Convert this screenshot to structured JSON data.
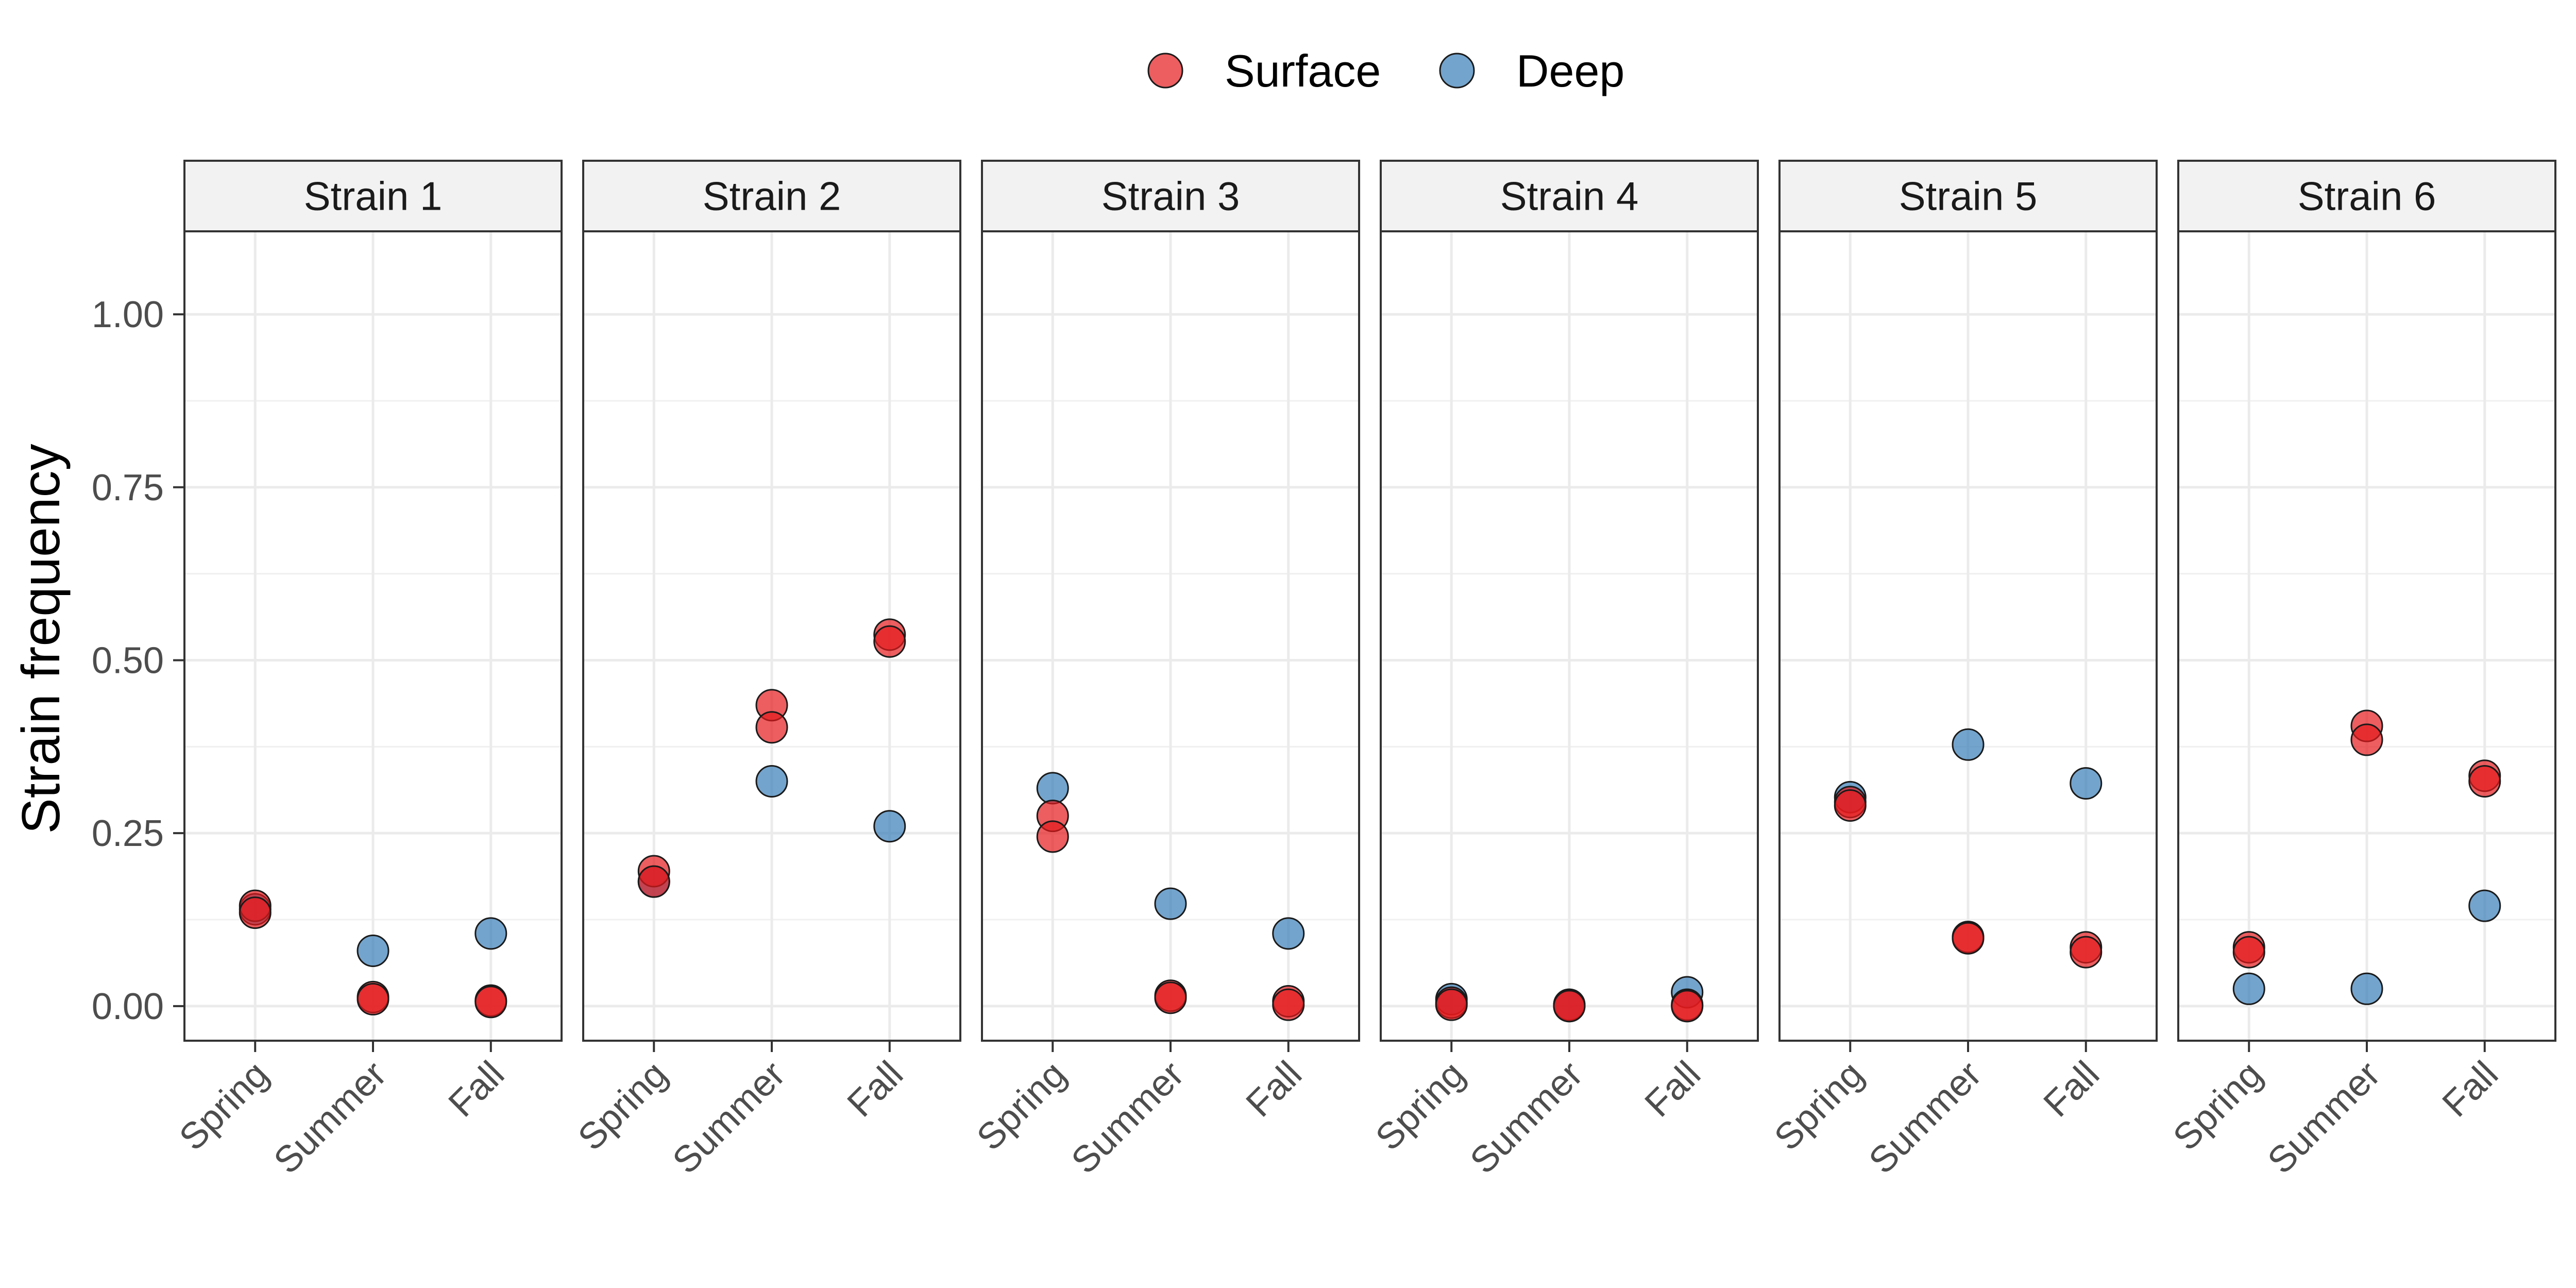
{
  "chart_data": {
    "type": "scatter",
    "title": "",
    "xlabel": "",
    "ylabel": "Strain frequency",
    "ylim": [
      -0.05,
      1.12
    ],
    "yticks": [
      0.0,
      0.25,
      0.5,
      0.75,
      1.0
    ],
    "ytick_labels": [
      "0.00",
      "0.25",
      "0.50",
      "0.75",
      "1.00"
    ],
    "categories": [
      "Spring",
      "Summer",
      "Fall"
    ],
    "grid": true,
    "legend_position": "top",
    "series": [
      {
        "name": "Surface",
        "color": "#e41a1c"
      },
      {
        "name": "Deep",
        "color": "#377eb8"
      }
    ],
    "panels": [
      {
        "title": "Strain 1",
        "points": {
          "Surface": [
            [
              0,
              0.145
            ],
            [
              0,
              0.135
            ],
            [
              1,
              0.013
            ],
            [
              1,
              0.01
            ],
            [
              2,
              0.008
            ],
            [
              2,
              0.006
            ]
          ],
          "Deep": [
            [
              0,
              0.14
            ],
            [
              1,
              0.08
            ],
            [
              2,
              0.105
            ]
          ]
        }
      },
      {
        "title": "Strain 2",
        "points": {
          "Surface": [
            [
              0,
              0.195
            ],
            [
              0,
              0.18
            ],
            [
              1,
              0.435
            ],
            [
              1,
              0.403
            ],
            [
              2,
              0.537
            ],
            [
              2,
              0.527
            ]
          ],
          "Deep": [
            [
              0,
              0.18
            ],
            [
              1,
              0.325
            ],
            [
              2,
              0.26
            ]
          ]
        }
      },
      {
        "title": "Strain 3",
        "points": {
          "Surface": [
            [
              0,
              0.275
            ],
            [
              0,
              0.245
            ],
            [
              1,
              0.015
            ],
            [
              1,
              0.012
            ],
            [
              2,
              0.007
            ],
            [
              2,
              0.002
            ]
          ],
          "Deep": [
            [
              0,
              0.315
            ],
            [
              1,
              0.148
            ],
            [
              2,
              0.105
            ]
          ]
        }
      },
      {
        "title": "Strain 4",
        "points": {
          "Surface": [
            [
              0,
              0.005
            ],
            [
              0,
              0.002
            ],
            [
              1,
              0.001
            ],
            [
              1,
              0.0
            ],
            [
              2,
              0.002
            ],
            [
              2,
              0.0
            ]
          ],
          "Deep": [
            [
              0,
              0.01
            ],
            [
              1,
              0.002
            ],
            [
              2,
              0.02
            ]
          ]
        }
      },
      {
        "title": "Strain 5",
        "points": {
          "Surface": [
            [
              0,
              0.295
            ],
            [
              0,
              0.29
            ],
            [
              1,
              0.1
            ],
            [
              1,
              0.098
            ],
            [
              2,
              0.085
            ],
            [
              2,
              0.078
            ]
          ],
          "Deep": [
            [
              0,
              0.302
            ],
            [
              1,
              0.378
            ],
            [
              2,
              0.322
            ]
          ]
        }
      },
      {
        "title": "Strain 6",
        "points": {
          "Surface": [
            [
              0,
              0.085
            ],
            [
              0,
              0.078
            ],
            [
              1,
              0.405
            ],
            [
              1,
              0.385
            ],
            [
              2,
              0.333
            ],
            [
              2,
              0.325
            ]
          ],
          "Deep": [
            [
              0,
              0.025
            ],
            [
              1,
              0.025
            ],
            [
              2,
              0.145
            ]
          ]
        }
      }
    ]
  }
}
